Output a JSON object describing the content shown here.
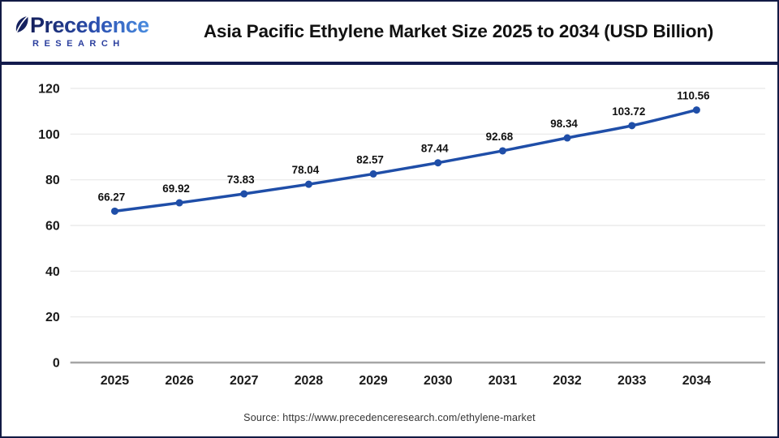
{
  "header": {
    "logo": {
      "wordmark": "Precedence",
      "subtitle": "RESEARCH"
    },
    "title": "Asia Pacific Ethylene Market Size 2025 to 2034 (USD Billion)"
  },
  "chart_data": {
    "type": "line",
    "title": "Asia Pacific Ethylene Market Size 2025 to 2034 (USD Billion)",
    "categories": [
      "2025",
      "2026",
      "2027",
      "2028",
      "2029",
      "2030",
      "2031",
      "2032",
      "2033",
      "2034"
    ],
    "values": [
      66.27,
      69.92,
      73.83,
      78.04,
      82.57,
      87.44,
      92.68,
      98.34,
      103.72,
      110.56
    ],
    "xlabel": "",
    "ylabel": "",
    "ylim": [
      0,
      120
    ],
    "yticks": [
      0,
      20,
      40,
      60,
      80,
      100,
      120
    ],
    "grid": true,
    "legend": "none",
    "line_color": "#1f4ea8",
    "gridline_color": "#e8e8e8",
    "axis_line_color": "#a6a6a6",
    "label_color": "#111111"
  },
  "footer": {
    "source": "Source: https://www.precedenceresearch.com/ethylene-market"
  }
}
